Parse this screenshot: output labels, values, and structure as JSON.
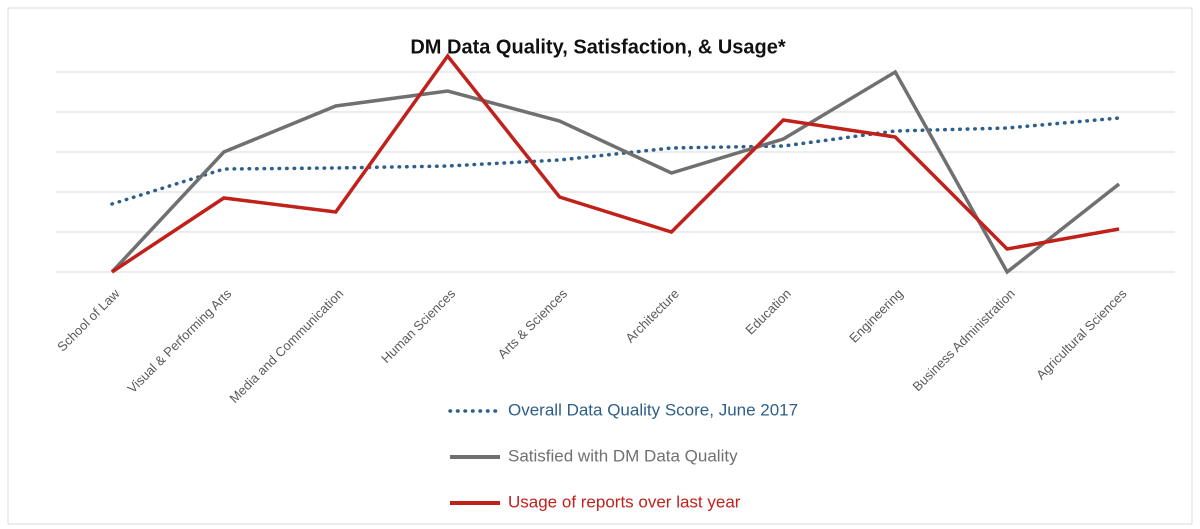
{
  "chart_data": {
    "type": "line",
    "title": "DM Data Quality, Satisfaction, & Usage*",
    "categories": [
      "School of Law",
      "Visual & Performing Arts",
      "Media and Communication",
      "Human Sciences",
      "Arts & Sciences",
      "Architecture",
      "Education",
      "Engineering",
      "Business Administration",
      "Agricultural Sciences"
    ],
    "series": [
      {
        "name": "Overall Data Quality Score, June 2017",
        "color": "#2e5f8a",
        "style": "dotted",
        "values": [
          1.7,
          2.575,
          2.6,
          2.65,
          2.8,
          3.1,
          3.15,
          3.525,
          3.6,
          3.85
        ]
      },
      {
        "name": "Satisfied with DM Data Quality",
        "color": "#707070",
        "style": "solid",
        "values": [
          0,
          3,
          4.15,
          4.525,
          3.775,
          2.475,
          3.325,
          5,
          0,
          2.2
        ]
      },
      {
        "name": "Usage of reports over last year",
        "color": "#c0211b",
        "style": "solid",
        "values": [
          0,
          1.85,
          1.5,
          5.4,
          1.875,
          1.0,
          3.8,
          3.375,
          0.575,
          1.075
        ]
      }
    ],
    "ylim": [
      0,
      5
    ],
    "yticks": [
      0,
      1,
      2,
      3,
      4,
      5
    ],
    "grid": true,
    "legend": "bottom"
  }
}
